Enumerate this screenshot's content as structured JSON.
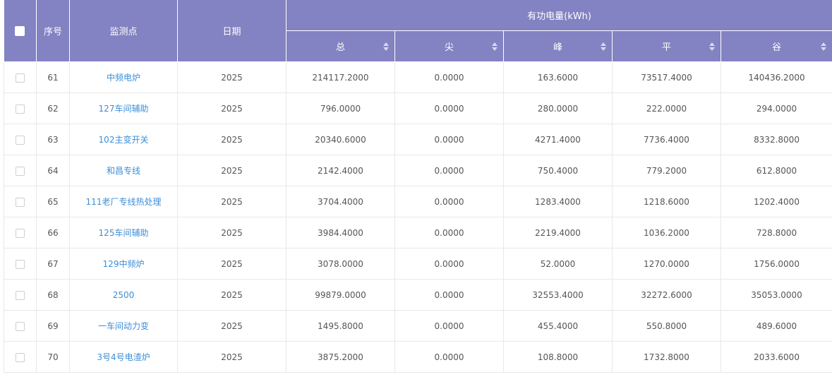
{
  "header": {
    "seq": "序号",
    "point": "监测点",
    "date": "日期",
    "group": "有功电量(kWh)",
    "cols": [
      "总",
      "尖",
      "峰",
      "平",
      "谷"
    ]
  },
  "rows": [
    {
      "seq": "61",
      "name": "中频电炉",
      "date": "2025",
      "total": "214117.2000",
      "sharp": "0.0000",
      "peak": "163.6000",
      "flat": "73517.4000",
      "valley": "140436.2000"
    },
    {
      "seq": "62",
      "name": "127车间辅助",
      "date": "2025",
      "total": "796.0000",
      "sharp": "0.0000",
      "peak": "280.0000",
      "flat": "222.0000",
      "valley": "294.0000"
    },
    {
      "seq": "63",
      "name": "102主变开关",
      "date": "2025",
      "total": "20340.6000",
      "sharp": "0.0000",
      "peak": "4271.4000",
      "flat": "7736.4000",
      "valley": "8332.8000"
    },
    {
      "seq": "64",
      "name": "和昌专线",
      "date": "2025",
      "total": "2142.4000",
      "sharp": "0.0000",
      "peak": "750.4000",
      "flat": "779.2000",
      "valley": "612.8000"
    },
    {
      "seq": "65",
      "name": "111老厂专线热处理",
      "date": "2025",
      "total": "3704.4000",
      "sharp": "0.0000",
      "peak": "1283.4000",
      "flat": "1218.6000",
      "valley": "1202.4000"
    },
    {
      "seq": "66",
      "name": "125车间辅助",
      "date": "2025",
      "total": "3984.4000",
      "sharp": "0.0000",
      "peak": "2219.4000",
      "flat": "1036.2000",
      "valley": "728.8000"
    },
    {
      "seq": "67",
      "name": "129中频炉",
      "date": "2025",
      "total": "3078.0000",
      "sharp": "0.0000",
      "peak": "52.0000",
      "flat": "1270.0000",
      "valley": "1756.0000"
    },
    {
      "seq": "68",
      "name": "2500",
      "date": "2025",
      "total": "99879.0000",
      "sharp": "0.0000",
      "peak": "32553.4000",
      "flat": "32272.6000",
      "valley": "35053.0000"
    },
    {
      "seq": "69",
      "name": "一车间动力变",
      "date": "2025",
      "total": "1495.8000",
      "sharp": "0.0000",
      "peak": "455.4000",
      "flat": "550.8000",
      "valley": "489.6000"
    },
    {
      "seq": "70",
      "name": "3号4号电渣炉",
      "date": "2025",
      "total": "3875.2000",
      "sharp": "0.0000",
      "peak": "108.8000",
      "flat": "1732.8000",
      "valley": "2033.6000"
    }
  ]
}
